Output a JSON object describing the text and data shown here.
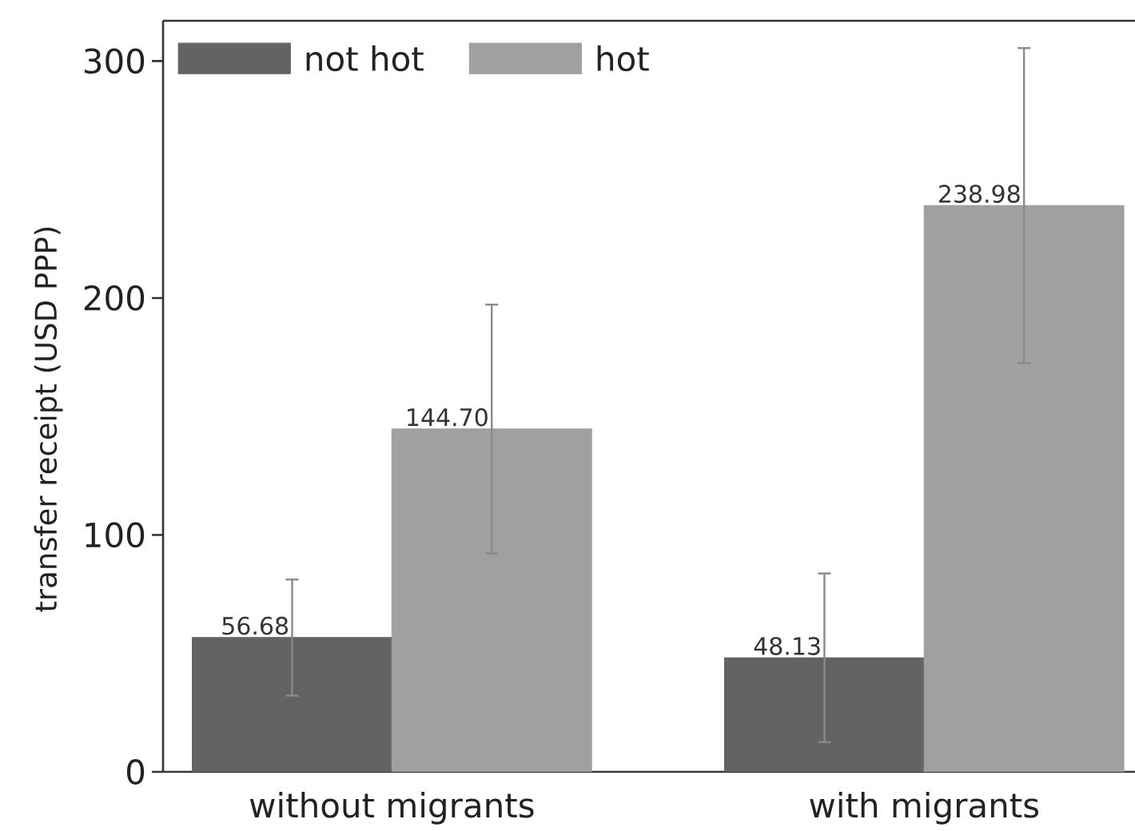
{
  "chart_data": {
    "type": "bar",
    "ylabel": "transfer receipt (USD PPP)",
    "categories": [
      "without migrants",
      "with migrants"
    ],
    "series": [
      {
        "name": "not hot",
        "color": "#636363",
        "values": [
          56.68,
          48.13
        ],
        "errors": [
          24.5,
          35.6
        ],
        "value_labels": [
          "56.68",
          "48.13"
        ]
      },
      {
        "name": "hot",
        "color": "#a0a0a0",
        "values": [
          144.7,
          238.98
        ],
        "errors": [
          52.5,
          66.5
        ],
        "value_labels": [
          "144.70",
          "238.98"
        ]
      }
    ],
    "ylim": [
      0,
      317
    ],
    "yticks": [
      0,
      100,
      200,
      300
    ],
    "legend": "top left",
    "grid": false
  }
}
